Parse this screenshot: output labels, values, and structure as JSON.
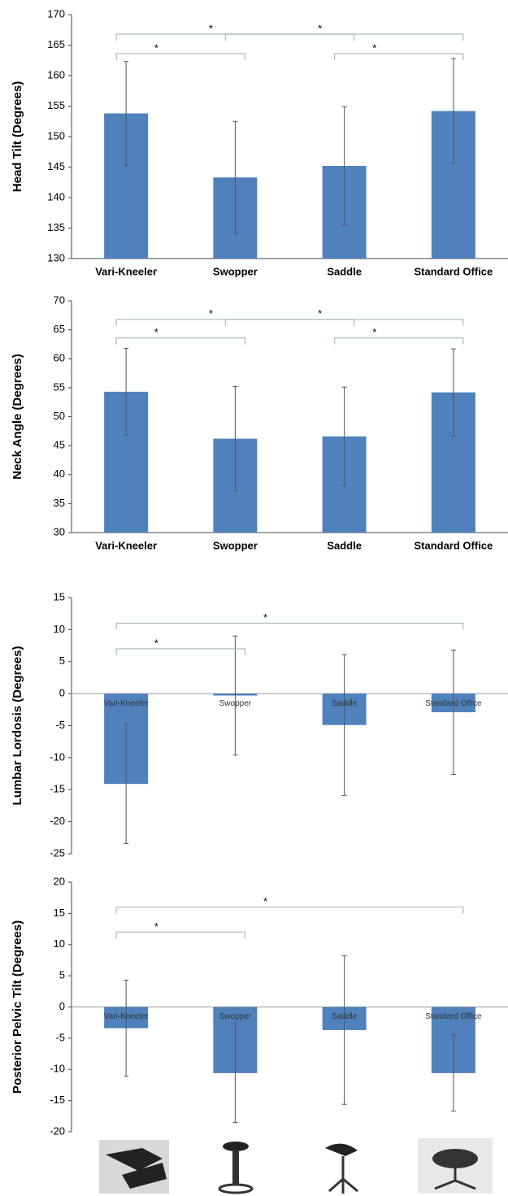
{
  "chart_data": [
    {
      "type": "bar",
      "y_label": "Head Tilt (Degrees)",
      "categories": [
        "Vari-Kneeler",
        "Swopper",
        "Saddle",
        "Standard Office"
      ],
      "values": [
        153.8,
        143.3,
        145.2,
        154.2
      ],
      "errors": [
        8.5,
        9.2,
        9.7,
        8.6
      ],
      "color": "#4f81bd",
      "ylim": [
        130,
        170
      ],
      "yticks": [
        130,
        135,
        140,
        145,
        150,
        155,
        160,
        165,
        170
      ],
      "brackets": [
        {
          "from": 0,
          "to": 1,
          "label": "*"
        },
        {
          "from": 2,
          "to": 3,
          "label": "*"
        },
        {
          "from": 0,
          "to": 2,
          "label": "*"
        },
        {
          "from": 1,
          "to": 3,
          "label": "*"
        }
      ]
    },
    {
      "type": "bar",
      "y_label": "Neck Angle (Degrees)",
      "categories": [
        "Vari-Kneeler",
        "Swopper",
        "Saddle",
        "Standard Office"
      ],
      "values": [
        54.3,
        46.2,
        46.6,
        54.2
      ],
      "errors": [
        7.5,
        9,
        8.5,
        7.5
      ],
      "color": "#4f81bd",
      "ylim": [
        30,
        70
      ],
      "yticks": [
        30,
        35,
        40,
        45,
        50,
        55,
        60,
        65,
        70
      ],
      "brackets": [
        {
          "from": 0,
          "to": 1,
          "label": "*"
        },
        {
          "from": 2,
          "to": 3,
          "label": "*"
        },
        {
          "from": 0,
          "to": 2,
          "label": "*"
        },
        {
          "from": 1,
          "to": 3,
          "label": "*"
        }
      ]
    },
    {
      "type": "bar",
      "y_label": "Lumbar Lordosis (Degrees)",
      "categories": [
        "Vari-Kneeler",
        "Swopper",
        "Saddle",
        "Standard  Office"
      ],
      "values": [
        -14.1,
        -0.3,
        -4.9,
        -2.9
      ],
      "errors": [
        9.3,
        9.3,
        11,
        9.7
      ],
      "color": "#4f81bd",
      "ylim": [
        -25,
        15
      ],
      "yticks": [
        -25,
        -20,
        -15,
        -10,
        -5,
        0,
        5,
        10,
        15
      ],
      "brackets": [
        {
          "from": 0,
          "to": 1,
          "label": "*"
        },
        {
          "from": 0,
          "to": 3,
          "label": "*"
        }
      ]
    },
    {
      "type": "bar",
      "y_label": "Posterior Pelvic Tilt (Degrees)",
      "categories": [
        "Vari-Kneeler",
        "Swopper",
        "Saddle",
        "Standard Office"
      ],
      "values": [
        -3.4,
        -10.6,
        -3.7,
        -10.6
      ],
      "errors": [
        7.7,
        7.9,
        11.9,
        6.1
      ],
      "color": "#4f81bd",
      "ylim": [
        -20,
        20
      ],
      "yticks": [
        -20,
        -15,
        -10,
        -5,
        0,
        5,
        10,
        15,
        20
      ],
      "brackets": [
        {
          "from": 0,
          "to": 1,
          "label": "*"
        },
        {
          "from": 0,
          "to": 3,
          "label": "*"
        }
      ]
    }
  ]
}
